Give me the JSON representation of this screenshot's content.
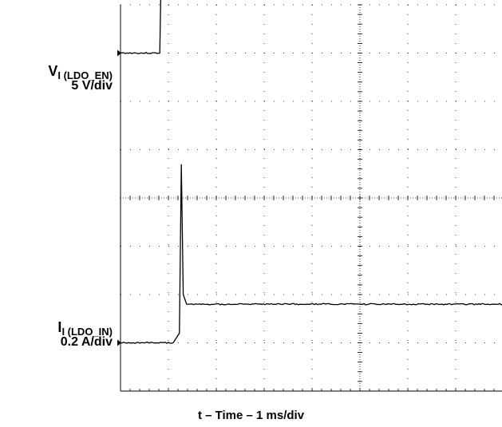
{
  "chart_data": {
    "type": "line",
    "title": "",
    "xlabel": "t – Time – 1 ms/div",
    "ylabel": "",
    "grid": true,
    "x_unit": "ms",
    "xlim": [
      0,
      10
    ],
    "divisions": {
      "x": 10,
      "y": 8
    },
    "series": [
      {
        "name": "VI (LDO_EN)",
        "label_main": "V",
        "label_sub": "I (LDO_EN)",
        "scale": "5 V/div",
        "unit": "V",
        "ground_div": 1.0,
        "points": [
          [
            0,
            0
          ],
          [
            0.82,
            0
          ],
          [
            0.84,
            5.8
          ],
          [
            10,
            5.8
          ]
        ]
      },
      {
        "name": "II (LDO_IN)",
        "label_main": "I",
        "label_sub": "I (LDO_IN)",
        "scale": "0.2 A/div",
        "unit": "A",
        "ground_div": 7.0,
        "points": [
          [
            0,
            0
          ],
          [
            1.1,
            0
          ],
          [
            1.23,
            0.04
          ],
          [
            1.27,
            0.74
          ],
          [
            1.31,
            0.2
          ],
          [
            1.38,
            0.16
          ],
          [
            1.45,
            0.16
          ],
          [
            10,
            0.16
          ]
        ]
      }
    ],
    "ground_markers": [
      "left-edge",
      "left-edge"
    ],
    "trigger_marker": "right-edge"
  }
}
